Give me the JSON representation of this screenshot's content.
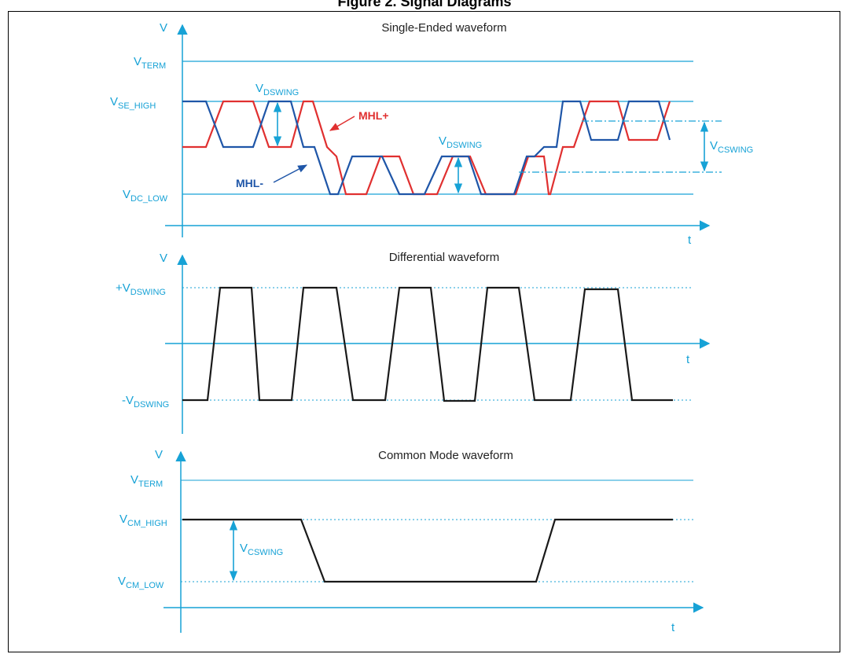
{
  "page_title": "Figure 2. Signal Diagrams",
  "colors": {
    "axis": "#17a2d6",
    "mhl_plus": "#e03030",
    "mhl_minus": "#1f56a8",
    "trace": "#1a1a1a"
  },
  "panels": {
    "single_ended": {
      "title": "Single-Ended  waveform",
      "y_axis": "V",
      "x_axis": "t",
      "levels": {
        "term": {
          "main": "V",
          "sub": "TERM"
        },
        "se_high": {
          "main": "V",
          "sub": "SE_HIGH"
        },
        "dc_low": {
          "main": "V",
          "sub": "DC_LOW"
        }
      },
      "dswing_1": {
        "main": "V",
        "sub": "DSWING"
      },
      "dswing_2": {
        "main": "V",
        "sub": "DSWING"
      },
      "cswing": {
        "main": "V",
        "sub": "CSWING"
      },
      "mhl_plus": "MHL+",
      "mhl_minus": "MHL-"
    },
    "differential": {
      "title": "Differential waveform",
      "y_axis": "V",
      "x_axis": "t",
      "pos": {
        "main": "+V",
        "sub": "DSWING"
      },
      "neg": {
        "main": "-V",
        "sub": "DSWING"
      }
    },
    "common_mode": {
      "title": "Common Mode waveform",
      "y_axis": "V",
      "x_axis": "t",
      "levels": {
        "term": {
          "main": "V",
          "sub": "TERM"
        },
        "cm_high": {
          "main": "V",
          "sub": "CM_HIGH"
        },
        "cm_low": {
          "main": "V",
          "sub": "CM_LOW"
        }
      },
      "cswing": {
        "main": "V",
        "sub": "CSWING"
      }
    }
  }
}
